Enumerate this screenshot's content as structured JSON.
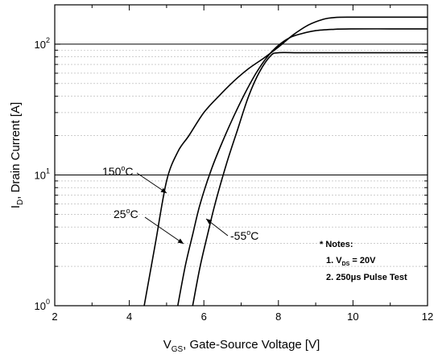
{
  "chart_data": {
    "type": "line",
    "xlabel": {
      "main": "V",
      "sub": "GS",
      "rest": ", Gate-Source Voltage [V]"
    },
    "ylabel": {
      "main": "I",
      "sub": "D",
      "rest": ", Drain Current [A]"
    },
    "xlim": [
      2,
      12
    ],
    "ylim": [
      1,
      200
    ],
    "yscale": "log",
    "xticks": [
      "2",
      "4",
      "6",
      "8",
      "10",
      "12"
    ],
    "yticks": [
      {
        "base": "10",
        "exp": "0"
      },
      {
        "base": "10",
        "exp": "1"
      },
      {
        "base": "10",
        "exp": "2"
      }
    ],
    "series": [
      {
        "x": [
          4.4,
          4.7,
          5.0,
          5.3,
          5.6,
          6.0,
          6.4,
          6.8,
          7.2,
          7.6,
          8.0,
          8.4,
          8.8,
          9.2,
          9.5,
          10.0,
          11.0,
          12.0
        ],
        "y": [
          1,
          3,
          9,
          15,
          20,
          30,
          40,
          52,
          65,
          78,
          95,
          118,
          140,
          155,
          160,
          161,
          161,
          161
        ]
      },
      {
        "x": [
          5.3,
          5.5,
          5.7,
          5.9,
          6.2,
          6.5,
          6.8,
          7.1,
          7.4,
          7.7,
          8.0,
          8.3,
          8.6,
          9.0,
          9.5,
          10.0,
          11.0,
          12.0
        ],
        "y": [
          1,
          2,
          3.5,
          6,
          11,
          18,
          28,
          42,
          60,
          80,
          98,
          112,
          120,
          127,
          130,
          131,
          131,
          131
        ]
      },
      {
        "x": [
          5.7,
          5.9,
          6.1,
          6.3,
          6.6,
          6.9,
          7.2,
          7.5,
          7.8,
          8.0,
          8.5,
          9.0,
          10.0,
          11.0,
          12.0
        ],
        "y": [
          1,
          2,
          3.5,
          6,
          12,
          22,
          40,
          62,
          82,
          86,
          86,
          86,
          86,
          86,
          86
        ]
      }
    ],
    "annotations": [
      {
        "base": "150",
        "sup": "o",
        "unit": "C"
      },
      {
        "base": "25",
        "sup": "o",
        "unit": "C"
      },
      {
        "base": "-55",
        "sup": "o",
        "unit": "C"
      }
    ],
    "notes": {
      "title": "* Notes:",
      "line1": {
        "prefix": "1. V",
        "sub": "DS",
        "suffix": " = 20V"
      },
      "line2": "2. 250μs Pulse Test"
    },
    "grid": true,
    "colors": {
      "line": "#000000",
      "grid": "#b0b0b0",
      "background": "#ffffff"
    }
  }
}
